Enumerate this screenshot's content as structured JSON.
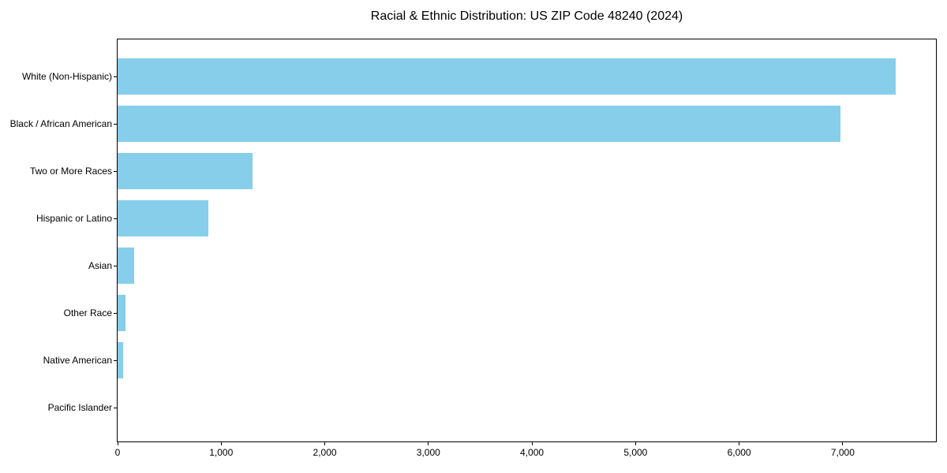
{
  "chart_data": {
    "type": "bar",
    "orientation": "horizontal",
    "title": "Racial & Ethnic Distribution: US ZIP Code 48240 (2024)",
    "categories": [
      "White (Non-Hispanic)",
      "Black / African American",
      "Two or More Races",
      "Hispanic or Latino",
      "Asian",
      "Other Race",
      "Native American",
      "Pacific Islander"
    ],
    "values": [
      7510,
      6980,
      1300,
      875,
      160,
      75,
      50,
      0
    ],
    "xlabel": "",
    "ylabel": "",
    "xlim": [
      0,
      7900
    ],
    "xticks": [
      0,
      1000,
      2000,
      3000,
      4000,
      5000,
      6000,
      7000
    ],
    "xtick_labels": [
      "0",
      "1,000",
      "2,000",
      "3,000",
      "4,000",
      "5,000",
      "6,000",
      "7,000"
    ],
    "bar_color": "#87CEEB",
    "axis_color": "#000000",
    "background_color": "#ffffff",
    "grid": false,
    "legend": null
  }
}
